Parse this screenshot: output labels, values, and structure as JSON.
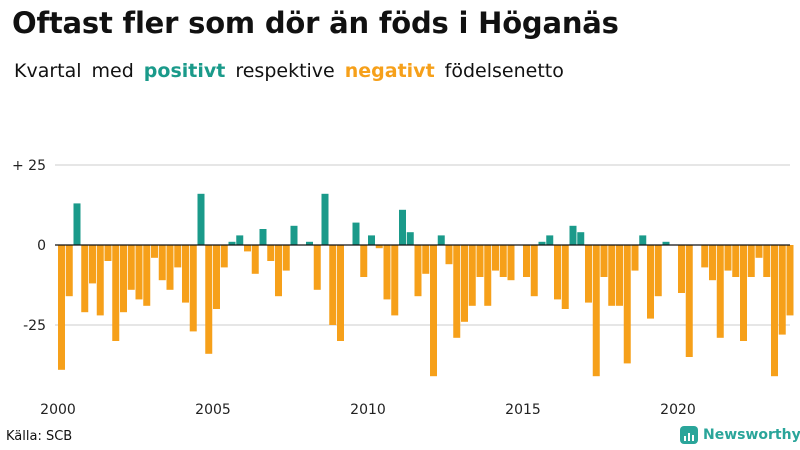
{
  "header": {
    "title": "Oftast fler som dör än föds i Höganäs",
    "subtitle_parts": [
      "Kvartal",
      "med",
      "positivt",
      "respektive",
      "negativt",
      "födelsenetto"
    ]
  },
  "footer": {
    "source": "Källa: SCB",
    "brand": "Newsworthy"
  },
  "colors": {
    "positive": "#1a9a8a",
    "negative": "#f6a01a",
    "brand": "#2aa59a"
  },
  "chart_data": {
    "type": "bar",
    "start_year": 2000,
    "periods_per_year": 4,
    "ylim": [
      -42,
      25
    ],
    "y_ticks": [
      25,
      0,
      -25
    ],
    "y_tick_labels": [
      "+ 25",
      "0",
      "-25"
    ],
    "x_tick_labels": [
      "2000",
      "2005",
      "2010",
      "2015",
      "2020"
    ],
    "x_tick_years": [
      2000,
      2005,
      2010,
      2015,
      2020
    ],
    "grid": true,
    "values": [
      -39,
      -16,
      13,
      -21,
      -12,
      -22,
      -5,
      -30,
      -21,
      -14,
      -17,
      -19,
      -4,
      -11,
      -14,
      -7,
      -18,
      -27,
      16,
      -34,
      -20,
      -7,
      1,
      3,
      -2,
      -9,
      5,
      -5,
      -16,
      -8,
      6,
      0,
      1,
      -14,
      16,
      -25,
      -30,
      0,
      7,
      -10,
      3,
      -1,
      -17,
      -22,
      11,
      4,
      -16,
      -9,
      -41,
      3,
      -6,
      -29,
      -24,
      -19,
      -10,
      -19,
      -8,
      -10,
      -11,
      0,
      -10,
      -16,
      1,
      3,
      -17,
      -20,
      6,
      4,
      -18,
      -41,
      -10,
      -19,
      -19,
      -37,
      -8,
      3,
      -23,
      -16,
      1,
      0,
      -15,
      -35,
      0,
      -7,
      -11,
      -29,
      -8,
      -10,
      -30,
      -10,
      -4,
      -10,
      -41,
      -28,
      -22
    ]
  }
}
